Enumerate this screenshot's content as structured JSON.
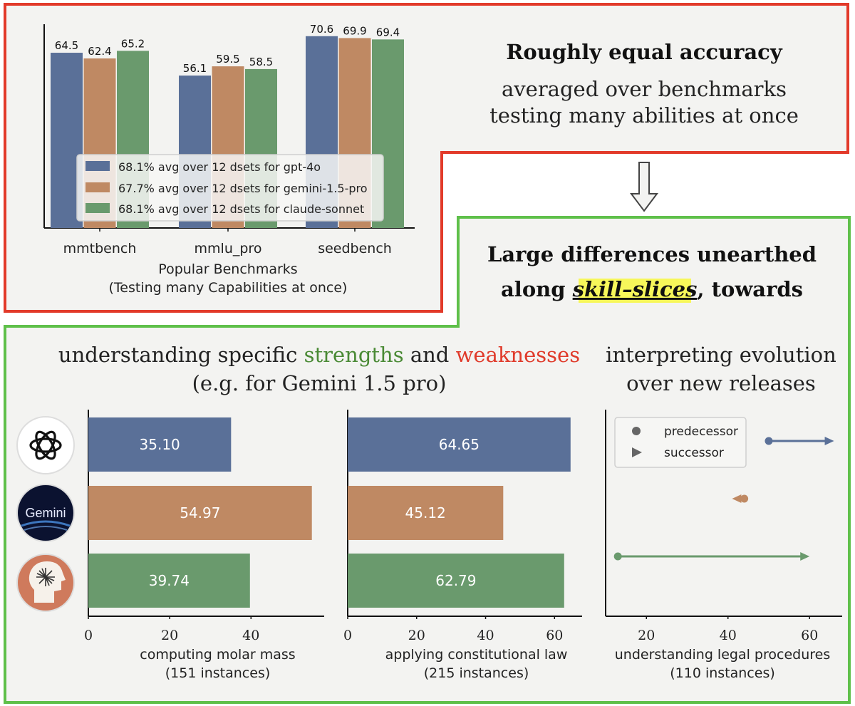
{
  "colors": {
    "gpt": "#5a7098",
    "gemini": "#bf8963",
    "claude": "#6a9a6d",
    "red_frame": "#e23a2a",
    "green_frame": "#5fc04a",
    "strengths": "#4a8a35",
    "weaknesses": "#e03a2a",
    "highlight": "#f7f75a",
    "panel_bg": "#f3f3f1"
  },
  "top_right": {
    "title": "Roughly equal accuracy",
    "line1": "averaged over benchmarks",
    "line2": "testing many abilities at once"
  },
  "middle_right": {
    "line1": "Large differences unearthed",
    "line2_prefix": "along ",
    "line2_highlight": "skill–slices",
    "line2_suffix": ", towards"
  },
  "section_left": {
    "line1_prefix": "understanding specific ",
    "strengths": "strengths",
    "line1_mid": " and ",
    "weaknesses": "weaknesses",
    "line2": "(e.g. for Gemini 1.5 pro)"
  },
  "section_right": {
    "line1": "interpreting evolution",
    "line2": "over new releases"
  },
  "model_icons": [
    "openai-logo-icon",
    "gemini-logo-icon",
    "claude-logo-icon"
  ],
  "gemini_logo_text": "Gemini",
  "chart_data": [
    {
      "type": "bar",
      "categories": [
        "mmtbench",
        "mmlu_pro",
        "seedbench"
      ],
      "series": [
        {
          "name": "68.1% avg over 12 dsets for gpt-4o",
          "values": [
            64.5,
            56.1,
            70.6
          ]
        },
        {
          "name": "67.7% avg over 12 dsets for gemini-1.5-pro",
          "values": [
            62.4,
            59.5,
            69.9
          ]
        },
        {
          "name": "68.1% avg over 12 dsets for claude-sonnet",
          "values": [
            65.2,
            58.5,
            69.4
          ]
        }
      ],
      "xlabel": "Popular Benchmarks",
      "xlabel2": "(Testing many Capabilities at once)",
      "legend_position": "lower-center"
    },
    {
      "type": "bar",
      "orientation": "horizontal",
      "values": [
        35.1,
        54.97,
        39.74
      ],
      "labels": [
        "35.10",
        "54.97",
        "39.74"
      ],
      "xticks": [
        "0",
        "20",
        "40"
      ],
      "xlabel": "computing molar mass",
      "xlabel2": "(151 instances)",
      "xlim": [
        0,
        58
      ]
    },
    {
      "type": "bar",
      "orientation": "horizontal",
      "values": [
        64.65,
        45.12,
        62.79
      ],
      "labels": [
        "64.65",
        "45.12",
        "62.79"
      ],
      "xticks": [
        "0",
        "20",
        "40",
        "60"
      ],
      "xlabel": "applying constitutional law",
      "xlabel2": "(215 instances)",
      "xlim": [
        0,
        68
      ]
    },
    {
      "type": "scatter",
      "series": [
        {
          "predecessor": 50,
          "successor": 66
        },
        {
          "predecessor": 44,
          "successor": 41
        },
        {
          "predecessor": 13,
          "successor": 60
        }
      ],
      "legend": [
        "predecessor",
        "successor"
      ],
      "legend_position": "upper-left",
      "xticks": [
        "20",
        "40",
        "60"
      ],
      "xlabel": "understanding legal procedures",
      "xlabel2": "(110 instances)",
      "xlim": [
        10,
        68
      ]
    }
  ]
}
